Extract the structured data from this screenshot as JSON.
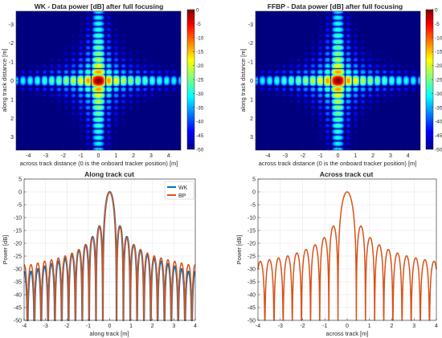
{
  "chart_data": [
    {
      "type": "heatmap",
      "title": "WK - Data power [dB] after full focusing",
      "xlabel": "across track distance (0 is the onboard tracker position) [m]",
      "ylabel": "along  track distance [m]",
      "xlim": [
        -4.7,
        4.7
      ],
      "ylim": [
        -3.7,
        3.7
      ],
      "y_reversed": true,
      "xticks": [
        "-4",
        "-3",
        "-2",
        "-1",
        "0",
        "1",
        "2",
        "3",
        "4"
      ],
      "yticks": [
        "-3",
        "-2",
        "-1",
        "0",
        "1",
        "2",
        "3"
      ],
      "colorbar": {
        "min": -50,
        "max": 0,
        "ticks": [
          "0",
          "-5",
          "-10",
          "-15",
          "-20",
          "-25",
          "-30",
          "-35",
          "-40",
          "-45",
          "-50"
        ],
        "colormap": "jet"
      }
    },
    {
      "type": "heatmap",
      "title": "FFBP - Data power [dB] after full focusing",
      "xlabel": "across track distance (0 is the onboard tracker position) [m]",
      "ylabel": "along  track distance [m]",
      "xlim": [
        -4.7,
        4.7
      ],
      "ylim": [
        -3.7,
        3.7
      ],
      "y_reversed": true,
      "xticks": [
        "-4",
        "-3",
        "-2",
        "-1",
        "0",
        "1",
        "2",
        "3",
        "4"
      ],
      "yticks": [
        "-3",
        "-2",
        "-1",
        "0",
        "1",
        "2",
        "3"
      ],
      "colorbar": {
        "min": -50,
        "max": 0,
        "ticks": [
          "0",
          "-5",
          "-10",
          "-15",
          "-20",
          "-25",
          "-30",
          "-35",
          "-40",
          "-45",
          "-50"
        ],
        "colormap": "jet"
      }
    },
    {
      "type": "line",
      "title": "Along track cut",
      "xlabel": "along track [m]",
      "ylabel": "Power [dB]",
      "xlim": [
        -4,
        4
      ],
      "ylim": [
        -50,
        5
      ],
      "xticks": [
        "-4",
        "-3",
        "-2",
        "-1",
        "0",
        "1",
        "2",
        "3",
        "4"
      ],
      "yticks": [
        "5",
        "0",
        "-5",
        "-10",
        "-15",
        "-20",
        "-25",
        "-30",
        "-35",
        "-40",
        "-45",
        "-50"
      ],
      "grid": true,
      "legend": "top-right",
      "series": [
        {
          "name": "WK",
          "color": "#0072bd",
          "sidelobe_peaks_db": [
            -13.3,
            -17.5,
            -20.6,
            -22.6,
            -24.4,
            -25.8,
            -27.0,
            -28.0,
            -29.0,
            -30.0,
            -31.0
          ]
        },
        {
          "name": "BP",
          "color": "#d95319",
          "sidelobe_peaks_db": [
            -13.3,
            -17.8,
            -20.6,
            -22.4,
            -23.8,
            -24.9,
            -25.7,
            -26.4,
            -27.0,
            -27.7,
            -28.3
          ]
        }
      ],
      "mainlobe_peak_db": 0,
      "lobe_spacing_m": 0.32
    },
    {
      "type": "line",
      "title": "Across track cut",
      "xlabel": "across track [m]",
      "ylabel": "Power [dB]",
      "xlim": [
        -4,
        4
      ],
      "ylim": [
        -50,
        5
      ],
      "xticks": [
        "-4",
        "-3",
        "-2",
        "-1",
        "0",
        "1",
        "2",
        "3",
        "4"
      ],
      "yticks": [
        "5",
        "0",
        "-5",
        "-10",
        "-15",
        "-20",
        "-25",
        "-30",
        "-35",
        "-40",
        "-45",
        "-50"
      ],
      "grid": true,
      "series": [
        {
          "name": "BP",
          "color": "#d95319",
          "sidelobe_peaks_db": [
            -13.3,
            -17.8,
            -20.6,
            -22.4,
            -23.8,
            -24.9,
            -25.7,
            -26.4,
            -27.0
          ]
        }
      ],
      "mainlobe_peak_db": 0,
      "lobe_spacing_m": 0.41
    }
  ]
}
